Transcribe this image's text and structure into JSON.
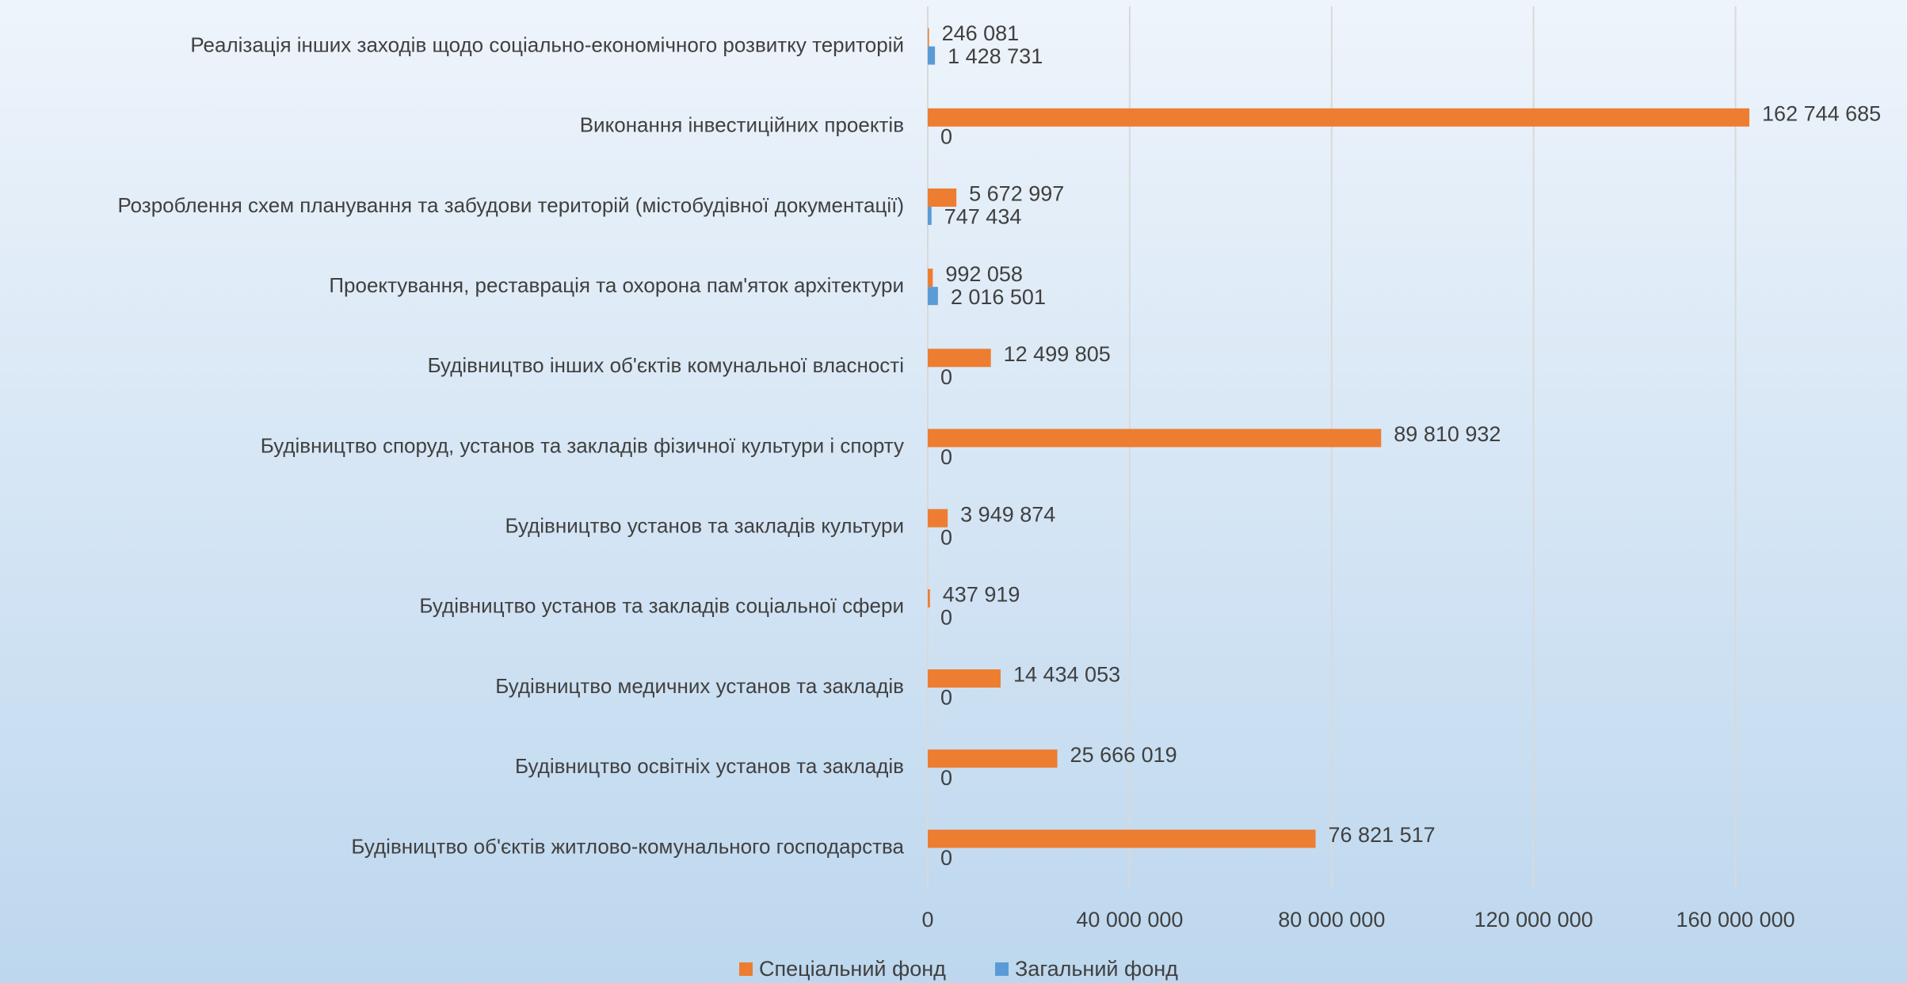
{
  "chart_data": {
    "type": "hbar",
    "categories": [
      "Реалізація інших заходів щодо соціально-економічного розвитку територій",
      "Виконання інвестиційних проектів",
      "Розроблення схем  планування та забудови територій (містобудівної документації)",
      "Проектування, реставрація та охорона пам'яток архітектури",
      "Будівництво інших об'єктів комунальної власності",
      "Будівництво  споруд, установ та закладів  фізичної культури і спорту",
      "Будівництво  установ та закладів культури",
      "Будівництво  установ та закладів соціальної сфери",
      "Будівництво  медичних установ та закладів",
      "Будівництво освітніх установ та закладів",
      "Будівництво об'єктів житлово-комунального господарства"
    ],
    "series": [
      {
        "name": "Спеціальний фонд",
        "color": "#ed7d31",
        "values": [
          246081,
          162744685,
          5672997,
          992058,
          12499805,
          89810932,
          3949874,
          437919,
          14434053,
          25666019,
          76821517
        ],
        "value_labels": [
          "246 081",
          "162 744 685",
          "5 672 997",
          "992 058",
          "12 499 805",
          "89 810 932",
          "3 949 874",
          "437 919",
          "14 434 053",
          "25 666 019",
          "76 821 517"
        ]
      },
      {
        "name": "Загальний фонд",
        "color": "#5b9bd5",
        "values": [
          1428731,
          0,
          747434,
          2016501,
          0,
          0,
          0,
          0,
          0,
          0,
          0
        ],
        "value_labels": [
          "1 428 731",
          "0",
          "747 434",
          "2 016 501",
          "0",
          "0",
          "0",
          "0",
          "0",
          "0",
          "0"
        ]
      }
    ],
    "xlim": [
      0,
      180000000
    ],
    "xticks": [
      0,
      {
        "value": 40000000,
        "label": "40 000 000"
      },
      {
        "value": 80000000,
        "label": "80 000 000"
      },
      {
        "value": 120000000,
        "label": "120 000 000"
      },
      {
        "value": 160000000,
        "label": "160 000 000"
      }
    ],
    "grid": true,
    "legend": "bottom"
  }
}
